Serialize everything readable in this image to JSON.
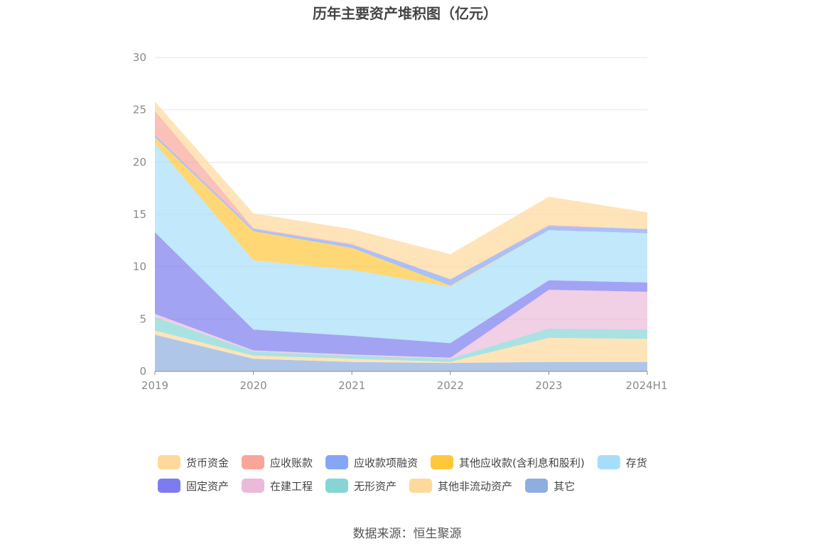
{
  "chart_data": {
    "type": "area",
    "stacked": true,
    "title": "历年主要资产堆积图（亿元）",
    "categories": [
      "2019",
      "2020",
      "2021",
      "2022",
      "2023",
      "2024H1"
    ],
    "ylim": [
      0,
      30
    ],
    "yticks": [
      0,
      5,
      10,
      15,
      20,
      25,
      30
    ],
    "grid": true,
    "legend_position": "bottom",
    "series": [
      {
        "name": "其它",
        "color": "#8eaee0",
        "values": [
          3.5,
          1.2,
          0.9,
          0.8,
          0.9,
          0.9
        ]
      },
      {
        "name": "其他非流动资产",
        "color": "#ffd99b",
        "values": [
          0.4,
          0.3,
          0.3,
          0.1,
          2.3,
          2.2
        ]
      },
      {
        "name": "无形资产",
        "color": "#86d5d5",
        "values": [
          1.3,
          0.4,
          0.3,
          0.3,
          0.9,
          0.9
        ]
      },
      {
        "name": "在建工程",
        "color": "#ebbad9",
        "values": [
          0.3,
          0.1,
          0.1,
          0.1,
          3.7,
          3.6
        ]
      },
      {
        "name": "固定资产",
        "color": "#7c7cf0",
        "values": [
          7.8,
          2.0,
          1.8,
          1.4,
          0.9,
          0.9
        ]
      },
      {
        "name": "存货",
        "color": "#a6def9",
        "values": [
          8.5,
          6.6,
          6.3,
          5.4,
          4.8,
          4.7
        ]
      },
      {
        "name": "其他应收款(含利息和股利)",
        "color": "#ffc73a",
        "values": [
          0.6,
          2.8,
          2.1,
          0.1,
          0.0,
          0.0
        ]
      },
      {
        "name": "应收款项融资",
        "color": "#86a5f7",
        "values": [
          0.2,
          0.2,
          0.3,
          0.6,
          0.4,
          0.4
        ]
      },
      {
        "name": "应收账款",
        "color": "#f9a59a",
        "values": [
          2.3,
          0.1,
          0.1,
          0.0,
          0.1,
          0.0
        ]
      },
      {
        "name": "货币资金",
        "color": "#ffd99b",
        "values": [
          0.9,
          1.4,
          1.4,
          2.4,
          2.7,
          1.6
        ]
      }
    ],
    "legend_order": [
      "货币资金",
      "应收账款",
      "应收款项融资",
      "其他应收款(含利息和股利)",
      "存货",
      "固定资产",
      "在建工程",
      "无形资产",
      "其他非流动资产",
      "其它"
    ]
  },
  "source_text": "数据来源：恒生聚源"
}
